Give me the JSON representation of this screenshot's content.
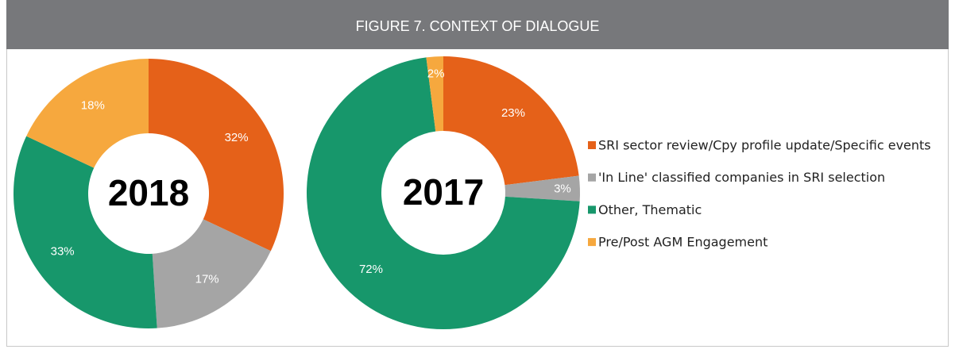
{
  "title": "FIGURE 7. CONTEXT OF DIALOGUE",
  "legend_position": "right",
  "categories": [
    "SRI sector review/Cpy profile update/Specific events",
    "'In Line' classified companies in SRI selection",
    "Other, Thematic",
    "Pre/Post AGM Engagement"
  ],
  "colors": [
    "#e56119",
    "#a5a5a5",
    "#17976b",
    "#f6a83e"
  ],
  "chart_data": [
    {
      "type": "donut",
      "label": "2018",
      "values": [
        32,
        17,
        33,
        18
      ],
      "value_labels": [
        "32%",
        "17%",
        "33%",
        "18%"
      ]
    },
    {
      "type": "donut",
      "label": "2017",
      "values": [
        23,
        3,
        72,
        2
      ],
      "value_labels": [
        "23%",
        "3%",
        "72%",
        "2%"
      ]
    }
  ]
}
